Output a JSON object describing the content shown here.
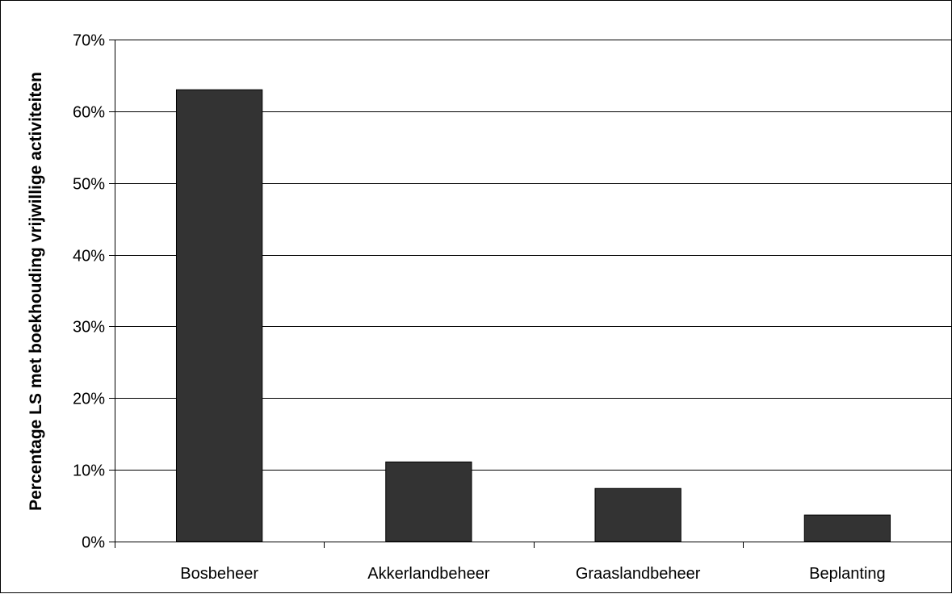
{
  "chart_data": {
    "type": "bar",
    "title": "",
    "xlabel": "",
    "ylabel": "Percentage LS met boekhouding vrijwillige activiteiten",
    "categories": [
      "Bosbeheer",
      "Akkerlandbeheer",
      "Graaslandbeheer",
      "Beplanting"
    ],
    "values": [
      63,
      11.1,
      7.4,
      3.7
    ],
    "ylim": [
      0,
      70
    ],
    "yticks": [
      0,
      10,
      20,
      30,
      40,
      50,
      60,
      70
    ],
    "ytick_labels": [
      "0%",
      "10%",
      "20%",
      "30%",
      "40%",
      "50%",
      "60%",
      "70%"
    ],
    "grid": true,
    "legend": "none",
    "bar_color": "#333333",
    "grid_color": "#000000"
  }
}
